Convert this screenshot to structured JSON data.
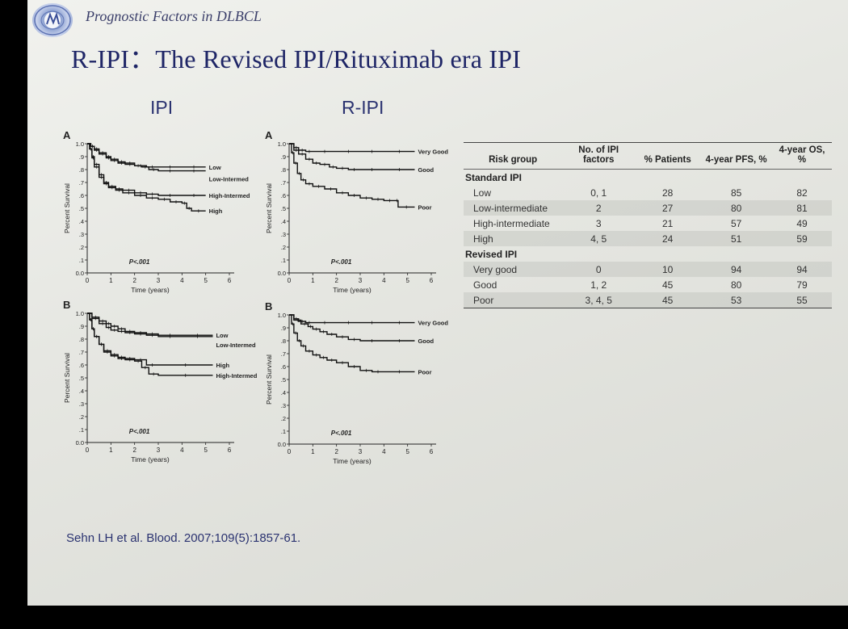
{
  "header": {
    "subtitle": "Prognostic Factors in DLBCL",
    "title": "R-IPI：The Revised IPI/Rituximab era IPI"
  },
  "columns": {
    "ipi": "IPI",
    "ripi": "R-IPI"
  },
  "citation": "Sehn LH et al. Blood. 2007;109(5):1857-61.",
  "chart_data": [
    {
      "id": "ipi-a",
      "type": "line",
      "panel_label": "A",
      "xlabel": "Time (years)",
      "ylabel": "Percent Survival",
      "xlim": [
        0,
        6
      ],
      "ylim": [
        0,
        1
      ],
      "xticks": [
        "0",
        "1",
        "2",
        "3",
        "4",
        "5",
        "6"
      ],
      "yticks": [
        "0.0",
        ".1",
        ".2",
        ".3",
        ".4",
        ".5",
        ".6",
        ".7",
        ".8",
        ".9",
        "1.0"
      ],
      "annotation": "P<.001",
      "series": [
        {
          "name": "Low",
          "x": [
            0,
            0.15,
            0.3,
            0.5,
            0.8,
            1.0,
            1.3,
            1.6,
            2.0,
            2.5,
            3.0,
            4.0,
            5.0
          ],
          "y": [
            1.0,
            0.98,
            0.96,
            0.93,
            0.9,
            0.88,
            0.86,
            0.85,
            0.83,
            0.82,
            0.82,
            0.82,
            0.82
          ]
        },
        {
          "name": "Low-Intermed",
          "x": [
            0,
            0.15,
            0.3,
            0.5,
            0.8,
            1.0,
            1.3,
            1.6,
            2.0,
            2.3,
            2.6,
            3.0,
            4.0,
            5.0
          ],
          "y": [
            1.0,
            0.98,
            0.95,
            0.92,
            0.89,
            0.87,
            0.85,
            0.84,
            0.83,
            0.82,
            0.8,
            0.79,
            0.79,
            0.79
          ]
        },
        {
          "name": "High-Intermed",
          "x": [
            0,
            0.1,
            0.2,
            0.3,
            0.5,
            0.7,
            0.9,
            1.2,
            1.5,
            2.0,
            2.5,
            3.0,
            4.0,
            5.0
          ],
          "y": [
            1.0,
            0.96,
            0.9,
            0.84,
            0.76,
            0.7,
            0.67,
            0.65,
            0.64,
            0.62,
            0.61,
            0.6,
            0.6,
            0.6
          ]
        },
        {
          "name": "High",
          "x": [
            0,
            0.1,
            0.2,
            0.3,
            0.5,
            0.7,
            0.9,
            1.2,
            1.5,
            2.0,
            2.5,
            3.0,
            3.5,
            4.0,
            4.2,
            4.4,
            5.0
          ],
          "y": [
            1.0,
            0.96,
            0.89,
            0.82,
            0.74,
            0.69,
            0.66,
            0.64,
            0.62,
            0.6,
            0.58,
            0.57,
            0.55,
            0.54,
            0.5,
            0.48,
            0.48
          ]
        }
      ]
    },
    {
      "id": "ripi-a",
      "type": "line",
      "panel_label": "A",
      "xlabel": "Time (years)",
      "ylabel": "Percent Survival",
      "xlim": [
        0,
        6
      ],
      "ylim": [
        0,
        1
      ],
      "xticks": [
        "0",
        "1",
        "2",
        "3",
        "4",
        "5",
        "6"
      ],
      "yticks": [
        "0.0",
        ".1",
        ".2",
        ".3",
        ".4",
        ".5",
        ".6",
        ".7",
        ".8",
        ".9",
        "1.0"
      ],
      "annotation": "P<.001",
      "series": [
        {
          "name": "Very Good",
          "x": [
            0,
            0.2,
            0.4,
            0.7,
            1.0,
            2.0,
            3.0,
            4.0,
            5.3
          ],
          "y": [
            1.0,
            0.97,
            0.95,
            0.94,
            0.94,
            0.94,
            0.94,
            0.94,
            0.94
          ]
        },
        {
          "name": "Good",
          "x": [
            0,
            0.2,
            0.4,
            0.7,
            1.0,
            1.3,
            1.7,
            2.0,
            2.5,
            3.0,
            4.0,
            5.3
          ],
          "y": [
            1.0,
            0.95,
            0.92,
            0.88,
            0.85,
            0.84,
            0.82,
            0.81,
            0.8,
            0.8,
            0.8,
            0.8
          ]
        },
        {
          "name": "Poor",
          "x": [
            0,
            0.1,
            0.2,
            0.35,
            0.5,
            0.7,
            1.0,
            1.5,
            2.0,
            2.5,
            3.0,
            3.5,
            4.0,
            4.5,
            4.6,
            5.3
          ],
          "y": [
            1.0,
            0.93,
            0.85,
            0.77,
            0.72,
            0.69,
            0.67,
            0.65,
            0.62,
            0.6,
            0.58,
            0.57,
            0.56,
            0.56,
            0.51,
            0.51
          ]
        }
      ]
    },
    {
      "id": "ipi-b",
      "type": "line",
      "panel_label": "B",
      "xlabel": "Time (years)",
      "ylabel": "Percent Survival",
      "xlim": [
        0,
        6
      ],
      "ylim": [
        0,
        1
      ],
      "xticks": [
        "0",
        "1",
        "2",
        "3",
        "4",
        "5",
        "6"
      ],
      "yticks": [
        "0.0",
        ".1",
        ".2",
        ".3",
        ".4",
        ".5",
        ".6",
        ".7",
        ".8",
        ".9",
        "1.0"
      ],
      "annotation": "P<.001",
      "series": [
        {
          "name": "Low",
          "x": [
            0,
            0.2,
            0.5,
            0.8,
            1.0,
            1.3,
            1.6,
            2.0,
            2.5,
            3.0,
            4.0,
            5.3
          ],
          "y": [
            1.0,
            0.97,
            0.94,
            0.92,
            0.9,
            0.88,
            0.86,
            0.85,
            0.84,
            0.83,
            0.83,
            0.83
          ]
        },
        {
          "name": "Low-Intermed",
          "x": [
            0,
            0.2,
            0.5,
            0.8,
            1.0,
            1.3,
            1.6,
            2.0,
            2.5,
            3.0,
            4.0,
            5.3
          ],
          "y": [
            1.0,
            0.96,
            0.92,
            0.89,
            0.87,
            0.86,
            0.85,
            0.84,
            0.83,
            0.82,
            0.82,
            0.82
          ]
        },
        {
          "name": "High",
          "x": [
            0,
            0.1,
            0.2,
            0.3,
            0.5,
            0.7,
            1.0,
            1.3,
            1.6,
            2.0,
            2.5,
            3.0,
            5.3
          ],
          "y": [
            1.0,
            0.95,
            0.88,
            0.82,
            0.76,
            0.71,
            0.68,
            0.66,
            0.65,
            0.64,
            0.6,
            0.6,
            0.6
          ]
        },
        {
          "name": "High-Intermed",
          "x": [
            0,
            0.1,
            0.2,
            0.3,
            0.5,
            0.7,
            1.0,
            1.3,
            1.6,
            2.0,
            2.3,
            2.6,
            3.0,
            5.3
          ],
          "y": [
            1.0,
            0.95,
            0.88,
            0.82,
            0.76,
            0.7,
            0.67,
            0.65,
            0.64,
            0.63,
            0.58,
            0.53,
            0.52,
            0.52
          ]
        }
      ]
    },
    {
      "id": "ripi-b",
      "type": "line",
      "panel_label": "B",
      "xlabel": "Time (years)",
      "ylabel": "Percent Survival",
      "xlim": [
        0,
        6
      ],
      "ylim": [
        0,
        1
      ],
      "xticks": [
        "0",
        "1",
        "2",
        "3",
        "4",
        "5",
        "6"
      ],
      "yticks": [
        "0.0",
        ".1",
        ".2",
        ".3",
        ".4",
        ".5",
        ".6",
        ".7",
        ".8",
        ".9",
        "1.0"
      ],
      "annotation": "P<.001",
      "series": [
        {
          "name": "Very Good",
          "x": [
            0,
            0.2,
            0.4,
            0.7,
            1.0,
            2.0,
            3.0,
            4.0,
            5.3
          ],
          "y": [
            1.0,
            0.97,
            0.95,
            0.94,
            0.94,
            0.94,
            0.94,
            0.94,
            0.94
          ]
        },
        {
          "name": "Good",
          "x": [
            0,
            0.2,
            0.5,
            0.8,
            1.0,
            1.3,
            1.6,
            2.0,
            2.5,
            3.0,
            4.0,
            5.3
          ],
          "y": [
            1.0,
            0.96,
            0.93,
            0.91,
            0.89,
            0.87,
            0.85,
            0.83,
            0.81,
            0.8,
            0.8,
            0.8
          ]
        },
        {
          "name": "Poor",
          "x": [
            0,
            0.1,
            0.2,
            0.35,
            0.5,
            0.7,
            1.0,
            1.3,
            1.6,
            2.0,
            2.5,
            3.0,
            3.5,
            4.0,
            5.3
          ],
          "y": [
            1.0,
            0.93,
            0.86,
            0.8,
            0.76,
            0.72,
            0.69,
            0.67,
            0.65,
            0.63,
            0.6,
            0.57,
            0.56,
            0.56,
            0.56
          ]
        }
      ]
    }
  ],
  "table": {
    "headers": [
      "Risk group",
      "No. of IPI factors",
      "% Patients",
      "4-year PFS, %",
      "4-year OS, %"
    ],
    "sections": [
      {
        "title": "Standard IPI",
        "rows": [
          {
            "group": "Low",
            "factors": "0, 1",
            "patients": "28",
            "pfs": "85",
            "os": "82"
          },
          {
            "group": "Low-intermediate",
            "factors": "2",
            "patients": "27",
            "pfs": "80",
            "os": "81"
          },
          {
            "group": "High-intermediate",
            "factors": "3",
            "patients": "21",
            "pfs": "57",
            "os": "49"
          },
          {
            "group": "High",
            "factors": "4, 5",
            "patients": "24",
            "pfs": "51",
            "os": "59"
          }
        ]
      },
      {
        "title": "Revised IPI",
        "rows": [
          {
            "group": "Very good",
            "factors": "0",
            "patients": "10",
            "pfs": "94",
            "os": "94"
          },
          {
            "group": "Good",
            "factors": "1, 2",
            "patients": "45",
            "pfs": "80",
            "os": "79"
          },
          {
            "group": "Poor",
            "factors": "3, 4, 5",
            "patients": "45",
            "pfs": "53",
            "os": "55"
          }
        ]
      }
    ]
  }
}
